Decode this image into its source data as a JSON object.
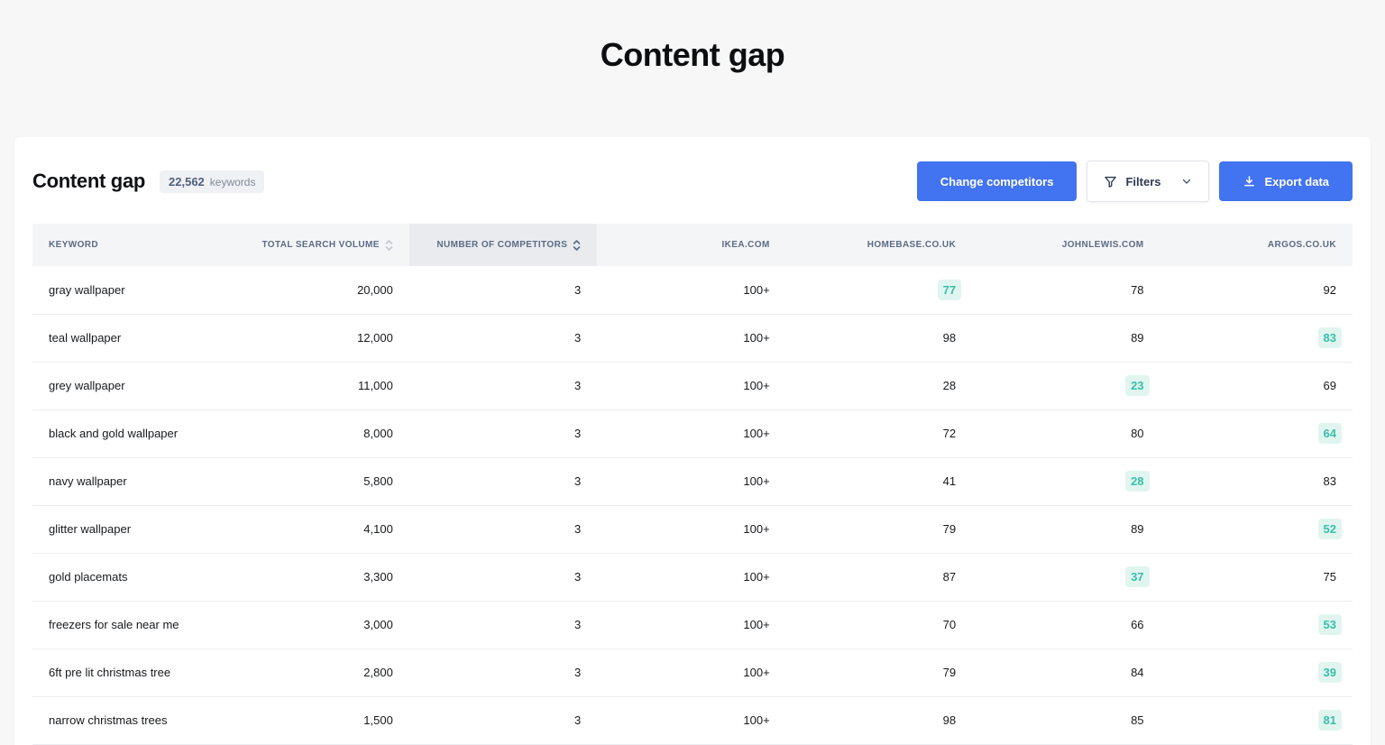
{
  "page": {
    "title": "Content gap"
  },
  "panel": {
    "heading": "Content gap",
    "keywords_count": "22,562",
    "keywords_unit": "keywords",
    "buttons": {
      "change_competitors": "Change competitors",
      "filters": "Filters",
      "export_data": "Export data"
    }
  },
  "table": {
    "columns": [
      {
        "key": "keyword",
        "label": "KEYWORD"
      },
      {
        "key": "volume",
        "label": "TOTAL SEARCH VOLUME",
        "sortable": true
      },
      {
        "key": "competitors",
        "label": "NUMBER OF COMPETITORS",
        "sortable": true,
        "sorted": true
      },
      {
        "key": "ikea",
        "label": "IKEA.COM"
      },
      {
        "key": "homebase",
        "label": "HOMEBASE.CO.UK"
      },
      {
        "key": "johnlewis",
        "label": "JOHNLEWIS.COM"
      },
      {
        "key": "argos",
        "label": "ARGOS.CO.UK"
      }
    ],
    "rows": [
      {
        "keyword": "gray wallpaper",
        "volume": "20,000",
        "competitors": "3",
        "ikea": "100+",
        "homebase": "77",
        "johnlewis": "78",
        "argos": "92",
        "best": "homebase"
      },
      {
        "keyword": "teal wallpaper",
        "volume": "12,000",
        "competitors": "3",
        "ikea": "100+",
        "homebase": "98",
        "johnlewis": "89",
        "argos": "83",
        "best": "argos"
      },
      {
        "keyword": "grey wallpaper",
        "volume": "11,000",
        "competitors": "3",
        "ikea": "100+",
        "homebase": "28",
        "johnlewis": "23",
        "argos": "69",
        "best": "johnlewis"
      },
      {
        "keyword": "black and gold wallpaper",
        "volume": "8,000",
        "competitors": "3",
        "ikea": "100+",
        "homebase": "72",
        "johnlewis": "80",
        "argos": "64",
        "best": "argos"
      },
      {
        "keyword": "navy wallpaper",
        "volume": "5,800",
        "competitors": "3",
        "ikea": "100+",
        "homebase": "41",
        "johnlewis": "28",
        "argos": "83",
        "best": "johnlewis"
      },
      {
        "keyword": "glitter wallpaper",
        "volume": "4,100",
        "competitors": "3",
        "ikea": "100+",
        "homebase": "79",
        "johnlewis": "89",
        "argos": "52",
        "best": "argos"
      },
      {
        "keyword": "gold placemats",
        "volume": "3,300",
        "competitors": "3",
        "ikea": "100+",
        "homebase": "87",
        "johnlewis": "37",
        "argos": "75",
        "best": "johnlewis"
      },
      {
        "keyword": "freezers for sale near me",
        "volume": "3,000",
        "competitors": "3",
        "ikea": "100+",
        "homebase": "70",
        "johnlewis": "66",
        "argos": "53",
        "best": "argos"
      },
      {
        "keyword": "6ft pre lit christmas tree",
        "volume": "2,800",
        "competitors": "3",
        "ikea": "100+",
        "homebase": "79",
        "johnlewis": "84",
        "argos": "39",
        "best": "argos"
      },
      {
        "keyword": "narrow christmas trees",
        "volume": "1,500",
        "competitors": "3",
        "ikea": "100+",
        "homebase": "98",
        "johnlewis": "85",
        "argos": "81",
        "best": "argos"
      }
    ]
  },
  "colors": {
    "accent_blue": "#4273f0",
    "highlight_bg": "#e1f5f0",
    "highlight_text": "#38bfa6",
    "sorted_header_bg": "#e9ebee"
  }
}
